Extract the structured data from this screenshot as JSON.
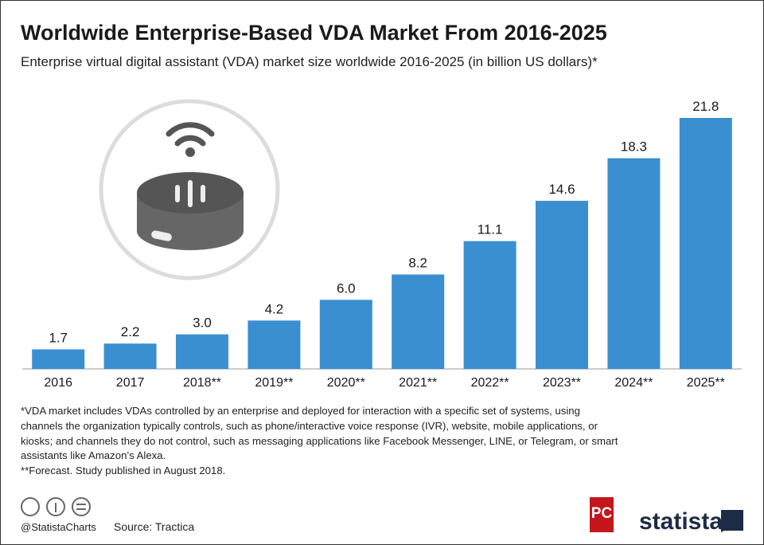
{
  "chart_data": {
    "type": "bar",
    "title": "Worldwide Enterprise-Based VDA Market From 2016-2025",
    "subtitle": "Enterprise virtual digital assistant (VDA) market size worldwide 2016-2025 (in billion US dollars)*",
    "categories": [
      "2016",
      "2017",
      "2018**",
      "2019**",
      "2020**",
      "2021**",
      "2022**",
      "2023**",
      "2024**",
      "2025**"
    ],
    "values": [
      1.7,
      2.2,
      3.0,
      4.2,
      6.0,
      8.2,
      11.1,
      14.6,
      18.3,
      21.8
    ],
    "value_labels": [
      "1.7",
      "2.2",
      "3.0",
      "4.2",
      "6.0",
      "8.2",
      "11.1",
      "14.6",
      "18.3",
      "21.8"
    ],
    "color": "#3a8fd0"
  },
  "footnotes": [
    "*VDA market includes VDAs controlled by an enterprise and deployed for interaction with a specific set of systems, using",
    "channels the organization typically controls, such as phone/interactive voice response (IVR), website, mobile applications, or",
    "kiosks; and channels they do not control, such as messaging applications like Facebook Messenger, LINE, or Telegram, or smart",
    "assistants like Amazon’s Alexa.",
    "**Forecast. Study published in August 2018."
  ],
  "credit": "@StatistaCharts",
  "source": "Source: Tractica",
  "logos": [
    "PC",
    "statista"
  ]
}
